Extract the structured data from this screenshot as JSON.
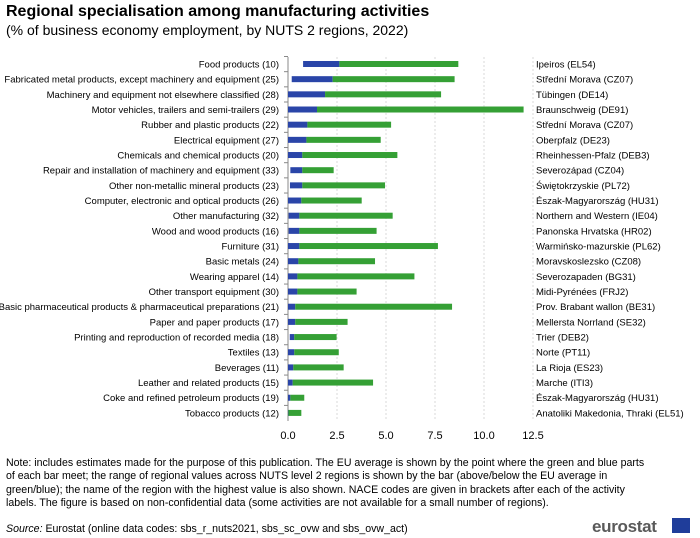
{
  "title": "Regional specialisation among manufacturing activities",
  "subtitle": "(% of business economy employment,  by NUTS  2 regions, 2022)",
  "note": "Note: includes estimates made for the purpose of this publication. The EU average is shown by the point where the green and blue parts of each bar meet; the range of regional values across NUTS level 2 regions is shown by the bar (above/below the EU average in green/blue); the name of the region with the highest value is also shown. NACE codes are given in brackets after each of the activity labels. The figure is based on non-confidential data (some activities are not available for a small number of regions).",
  "source_label": "Source:",
  "source_text": " Eurostat (online data codes: sbs_r_nuts2021, sbs_sc_ovw and sbs_ovw_act)",
  "logo": "eurostat",
  "colors": {
    "below_avg": "#2a45a8",
    "above_avg": "#35a035"
  },
  "chart_data": {
    "type": "bar",
    "orientation": "horizontal-range",
    "xlim": [
      0,
      12.5
    ],
    "xticks": [
      "0.0",
      "2.5",
      "5.0",
      "7.5",
      "10.0",
      "12.5"
    ],
    "grid": true,
    "categories": [
      "Food products (10)",
      "Fabricated metal products, except machinery and equipment (25)",
      "Machinery and equipment not elsewhere classified (28)",
      "Motor vehicles, trailers and semi-trailers (29)",
      "Rubber and plastic products (22)",
      "Electrical equipment (27)",
      "Chemicals and chemical products (20)",
      "Repair and installation of machinery and equipment (33)",
      "Other non-metallic mineral products (23)",
      "Computer, electronic and optical products (26)",
      "Other manufacturing (32)",
      "Wood and wood products (16)",
      "Furniture (31)",
      "Basic metals (24)",
      "Wearing apparel (14)",
      "Other transport equipment (30)",
      "Basic pharmaceutical products & pharmaceutical preparations (21)",
      "Paper and paper products (17)",
      "Printing and reproduction of recorded media (18)",
      "Textiles (13)",
      "Beverages (11)",
      "Leather and related products (15)",
      "Coke and refined petroleum products (19)",
      "Tobacco products (12)"
    ],
    "min": [
      0.77,
      0.19,
      0.0,
      0.0,
      0.0,
      0.0,
      0.0,
      0.12,
      0.1,
      0.0,
      0.03,
      0.03,
      0.0,
      0.0,
      0.0,
      0.0,
      0.0,
      0.0,
      0.09,
      0.0,
      0.0,
      0.0,
      0.0,
      0.0
    ],
    "eu_average": [
      2.62,
      2.28,
      1.89,
      1.48,
      0.99,
      0.94,
      0.73,
      0.73,
      0.73,
      0.68,
      0.58,
      0.58,
      0.58,
      0.53,
      0.48,
      0.48,
      0.37,
      0.37,
      0.32,
      0.32,
      0.27,
      0.24,
      0.12,
      0.02
    ],
    "max": [
      8.69,
      8.5,
      7.81,
      12.02,
      5.26,
      4.73,
      5.58,
      2.33,
      4.95,
      3.76,
      5.34,
      4.52,
      7.65,
      4.44,
      6.45,
      3.5,
      8.37,
      3.04,
      2.48,
      2.59,
      2.84,
      4.34,
      0.83,
      0.68
    ],
    "max_region": [
      "Ipeiros (EL54)",
      "Střední Morava (CZ07)",
      "Tübingen (DE14)",
      "Braunschweig (DE91)",
      "Střední Morava (CZ07)",
      "Oberpfalz (DE23)",
      "Rheinhessen-Pfalz (DEB3)",
      "Severozápad (CZ04)",
      "Świętokrzyskie (PL72)",
      "Észak-Magyarország (HU31)",
      "Northern and Western (IE04)",
      "Panonska Hrvatska (HR02)",
      "Warmińsko-mazurskie (PL62)",
      "Moravskoslezsko (CZ08)",
      "Severozapaden (BG31)",
      "Midi-Pyrénées (FRJ2)",
      "Prov. Brabant wallon (BE31)",
      "Mellersta Norrland (SE32)",
      "Trier (DEB2)",
      "Norte (PT11)",
      "La Rioja (ES23)",
      "Marche (ITI3)",
      "Észak-Magyarország (HU31)",
      "Anatoliki Makedonia, Thraki (EL51)"
    ]
  }
}
